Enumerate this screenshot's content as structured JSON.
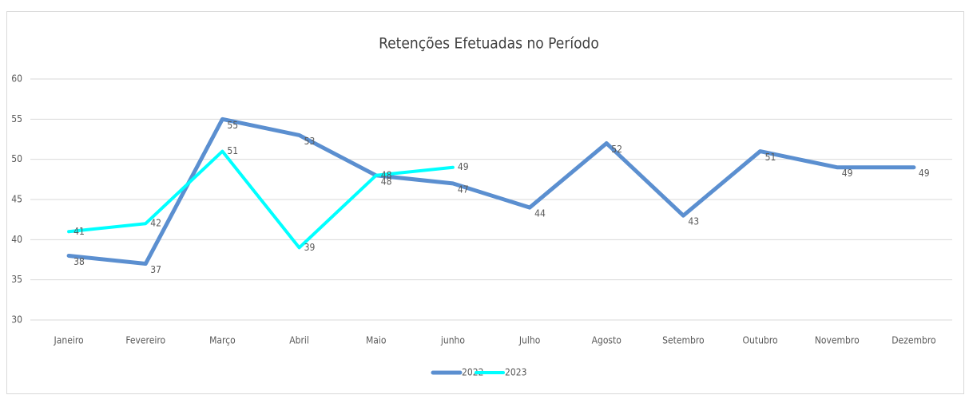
{
  "chart_data": {
    "type": "line",
    "title": "Retenções Efetuadas no Período",
    "categories": [
      "Janeiro",
      "Fevereiro",
      "Março",
      "Abril",
      "Maio",
      "junho",
      "Julho",
      "Agosto",
      "Setembro",
      "Outubro",
      "Novembro",
      "Dezembro"
    ],
    "series": [
      {
        "name": "2022",
        "color": "#5b8fd0",
        "values": [
          38,
          37,
          55,
          53,
          48,
          47,
          44,
          52,
          43,
          51,
          49,
          49
        ]
      },
      {
        "name": "2023",
        "color": "#00ffff",
        "values": [
          41,
          42,
          51,
          39,
          48,
          49,
          null,
          null,
          null,
          null,
          null,
          null
        ]
      }
    ],
    "ylim": [
      30,
      60
    ],
    "yticks": [
      30,
      35,
      40,
      45,
      50,
      55,
      60
    ],
    "grid": true,
    "legend": "bottom"
  }
}
